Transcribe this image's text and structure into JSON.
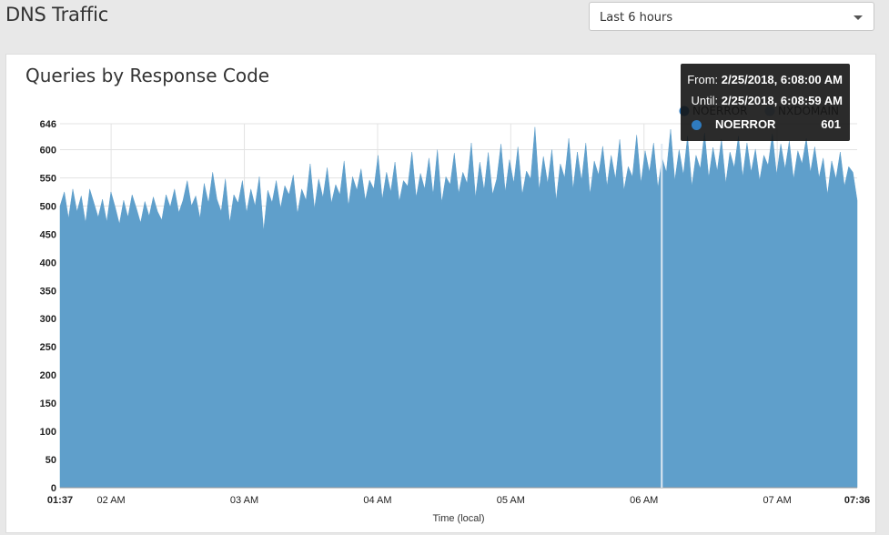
{
  "page": {
    "title": "DNS Traffic"
  },
  "time_range": {
    "selected": "Last 6 hours"
  },
  "panel": {
    "title": "Queries by Response Code"
  },
  "tooltip": {
    "from_label": "From:",
    "from_value": "2/25/2018, 6:08:00 AM",
    "until_label": "Until:",
    "until_value": "2/25/2018, 6:08:59 AM",
    "series": "NOERROR",
    "value": "601"
  },
  "colors": {
    "noerror": "#2f7bbf",
    "noerror_area": "#5f9fcb",
    "nxdomain": "#aec7e8",
    "grid": "#e3e3e3"
  },
  "chart_data": {
    "type": "area",
    "xlabel": "Time (local)",
    "ylabel": "",
    "ylim": [
      0,
      646
    ],
    "y_ticks": [
      "0",
      "50",
      "100",
      "150",
      "200",
      "250",
      "300",
      "350",
      "400",
      "450",
      "500",
      "550",
      "600",
      "646"
    ],
    "x_ticks": [
      {
        "label": "01:37",
        "minutes": 0,
        "bold": true
      },
      {
        "label": "02 AM",
        "minutes": 23,
        "bold": false
      },
      {
        "label": "03 AM",
        "minutes": 83,
        "bold": false
      },
      {
        "label": "04 AM",
        "minutes": 143,
        "bold": false
      },
      {
        "label": "05 AM",
        "minutes": 203,
        "bold": false
      },
      {
        "label": "06 AM",
        "minutes": 263,
        "bold": false
      },
      {
        "label": "07 AM",
        "minutes": 323,
        "bold": false
      },
      {
        "label": "07:36",
        "minutes": 359,
        "bold": true
      }
    ],
    "legend": [
      {
        "name": "NOERROR",
        "color": "#2f7bbf"
      },
      {
        "name": "NXDOMAIN",
        "color": "#aec7e8"
      }
    ],
    "legend_position": "top-right",
    "grid": true,
    "series": [
      {
        "name": "NOERROR",
        "x_start": "01:37",
        "x_end": "07:36",
        "values": [
          500,
          525,
          478,
          530,
          490,
          518,
          470,
          530,
          505,
          480,
          512,
          472,
          525,
          498,
          468,
          510,
          480,
          520,
          496,
          470,
          508,
          482,
          516,
          490,
          475,
          520,
          498,
          530,
          488,
          510,
          545,
          500,
          518,
          478,
          540,
          505,
          560,
          512,
          490,
          548,
          470,
          520,
          505,
          545,
          488,
          530,
          500,
          552,
          456,
          528,
          506,
          545,
          496,
          536,
          520,
          555,
          486,
          530,
          510,
          575,
          495,
          548,
          515,
          568,
          505,
          538,
          520,
          580,
          500,
          552,
          528,
          566,
          510,
          546,
          530,
          590,
          512,
          560,
          525,
          578,
          508,
          545,
          535,
          596,
          515,
          558,
          530,
          585,
          520,
          600,
          506,
          552,
          538,
          594,
          522,
          560,
          540,
          612,
          515,
          578,
          528,
          595,
          520,
          548,
          610,
          525,
          582,
          540,
          605,
          520,
          562,
          548,
          640,
          528,
          588,
          540,
          600,
          510,
          575,
          550,
          620,
          530,
          596,
          545,
          612,
          520,
          580,
          555,
          606,
          535,
          590,
          548,
          618,
          528,
          570,
          552,
          626,
          540,
          598,
          560,
          612,
          532,
          585,
          560,
          636,
          545,
          600,
          555,
          624,
          535,
          590,
          566,
          630,
          550,
          604,
          562,
          618,
          540,
          596,
          568,
          624,
          552,
          612,
          560,
          601,
          545,
          590,
          572,
          628,
          555,
          610,
          566,
          615,
          548,
          598,
          575,
          620,
          560,
          605,
          550,
          585,
          520,
          580,
          548,
          596,
          535,
          570,
          560,
          510
        ]
      }
    ],
    "cursor_minutes": 271
  }
}
